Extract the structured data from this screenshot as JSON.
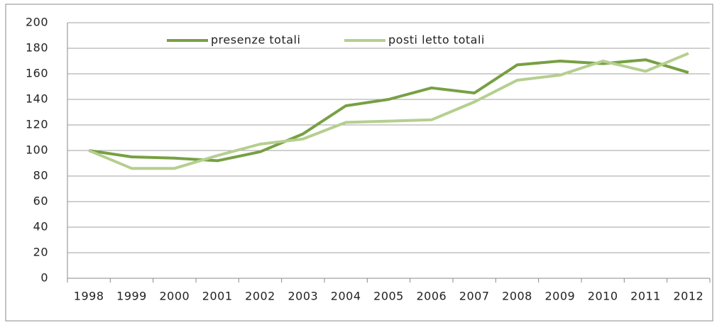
{
  "chart_data": {
    "type": "line",
    "categories": [
      "1998",
      "1999",
      "2000",
      "2001",
      "2002",
      "2003",
      "2004",
      "2005",
      "2006",
      "2007",
      "2008",
      "2009",
      "2010",
      "2011",
      "2012"
    ],
    "series": [
      {
        "name": "presenze totali",
        "color": "#77a043",
        "values": [
          100,
          95,
          94,
          92,
          99,
          113,
          135,
          140,
          149,
          145,
          167,
          170,
          168,
          171,
          161
        ]
      },
      {
        "name": "posti letto totali",
        "color": "#b5cf8f",
        "values": [
          100,
          86,
          86,
          96,
          105,
          109,
          122,
          123,
          124,
          138,
          155,
          159,
          170,
          162,
          176
        ]
      }
    ],
    "ylim": [
      0,
      200
    ],
    "yticks": [
      0,
      20,
      40,
      60,
      80,
      100,
      120,
      140,
      160,
      180,
      200
    ],
    "grid": true,
    "legend": "top"
  }
}
